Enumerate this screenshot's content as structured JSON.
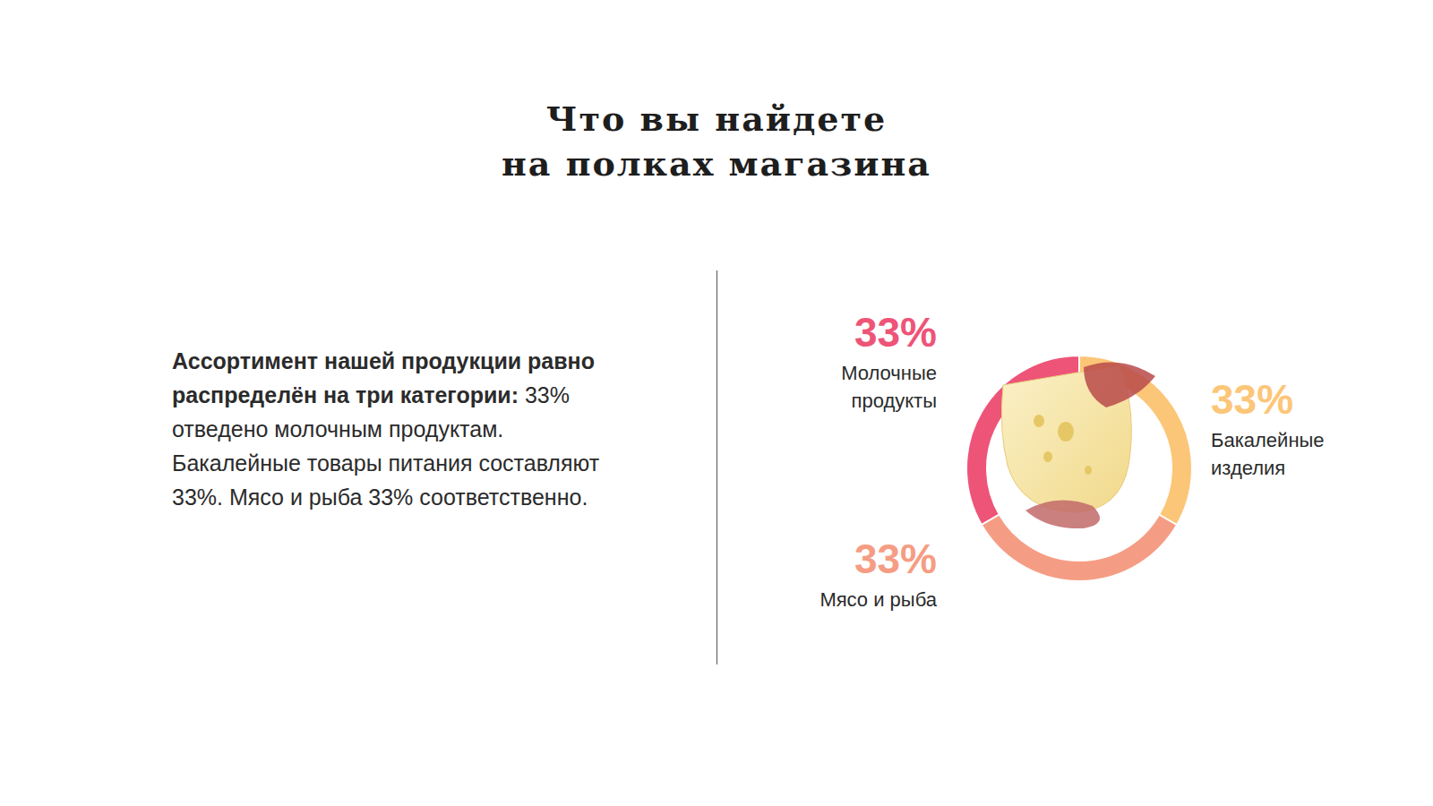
{
  "title_lines": [
    "Что вы найдете",
    "на полках магазина"
  ],
  "description": {
    "bold": "Ассортимент нашей продукции равно распределён на три категории:",
    "text": "33% отведено молочным продуктам. Бакалейные товары питания составляют 33%. Мясо и рыба 33% соответственно."
  },
  "chart_data": {
    "type": "pie",
    "categories": [
      "Молочные продукты",
      "Мясо и рыба",
      "Бакалейные изделия"
    ],
    "values": [
      33,
      33,
      33
    ],
    "value_labels": [
      "33%",
      "33%",
      "33%"
    ],
    "colors": [
      "#ee5478",
      "#f59d84",
      "#fcc678"
    ],
    "data_labels": true
  }
}
